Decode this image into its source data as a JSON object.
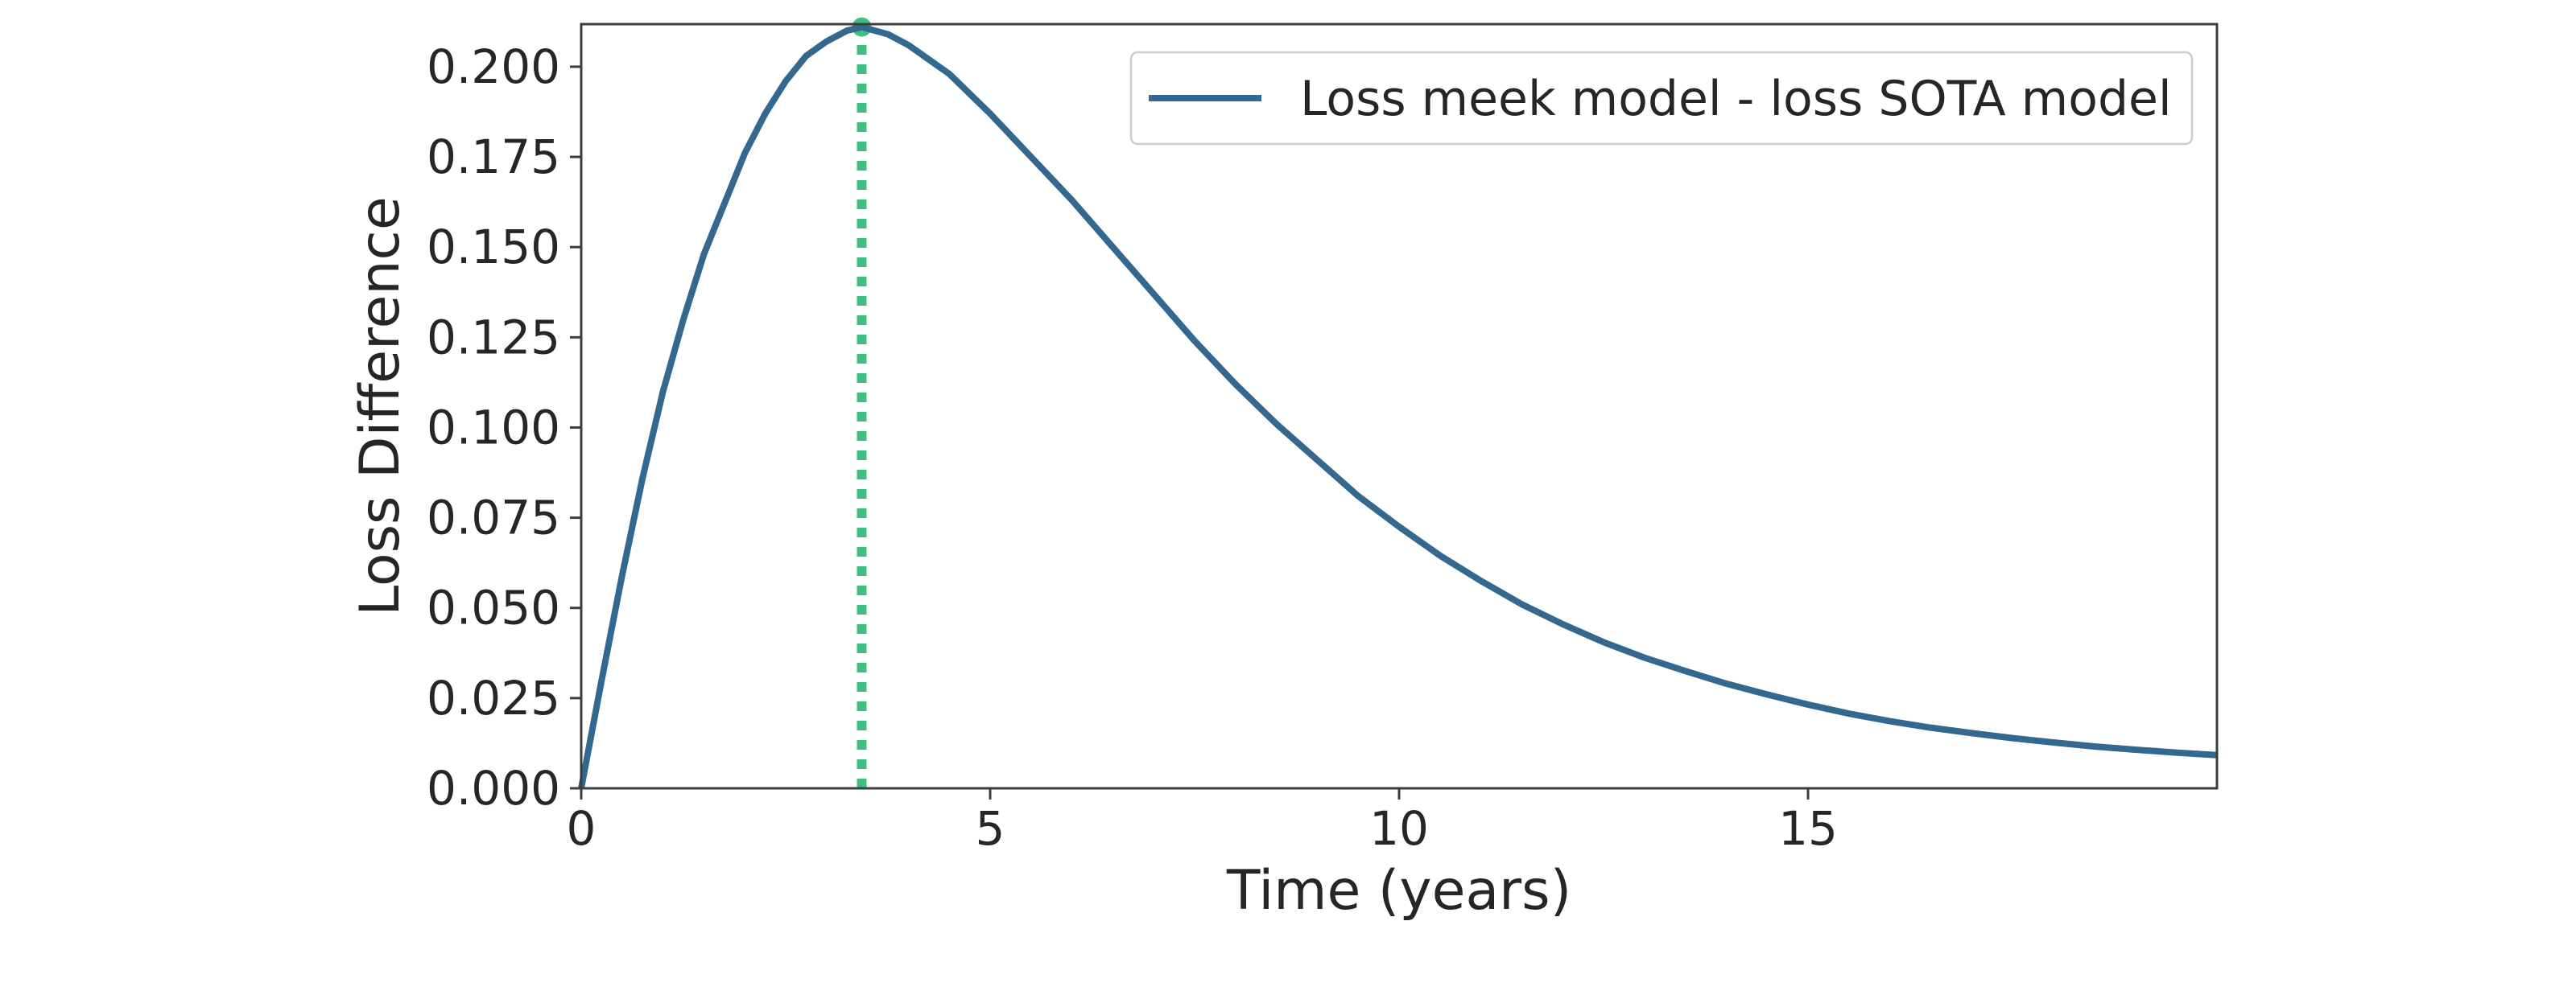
{
  "chart_data": {
    "type": "line",
    "title": "",
    "xlabel": "Time (years)",
    "ylabel": "Loss Difference",
    "xlim": [
      0,
      20
    ],
    "ylim": [
      0,
      0.2118
    ],
    "xticks": [
      0,
      5,
      10,
      15
    ],
    "xtick_labels": [
      "0",
      "5",
      "10",
      "15"
    ],
    "yticks": [
      0.0,
      0.025,
      0.05,
      0.075,
      0.1,
      0.125,
      0.15,
      0.175,
      0.2
    ],
    "ytick_labels": [
      "0.000",
      "0.025",
      "0.050",
      "0.075",
      "0.100",
      "0.125",
      "0.150",
      "0.175",
      "0.200"
    ],
    "grid": false,
    "legend_position": "top-right",
    "series": [
      {
        "name": "Loss meek model - loss SOTA model",
        "color": "#34688f",
        "x": [
          0,
          0.25,
          0.5,
          0.75,
          1,
          1.25,
          1.5,
          1.75,
          2,
          2.25,
          2.5,
          2.75,
          3,
          3.25,
          3.43,
          3.75,
          4,
          4.5,
          5,
          5.5,
          6,
          6.5,
          7,
          7.5,
          8,
          8.5,
          9,
          9.5,
          10,
          10.5,
          11,
          11.5,
          12,
          12.5,
          13,
          13.5,
          14,
          14.5,
          15,
          15.5,
          16,
          16.5,
          17,
          17.5,
          18,
          18.5,
          19,
          19.5,
          20
        ],
        "y": [
          0.0,
          0.03,
          0.059,
          0.086,
          0.11,
          0.13,
          0.148,
          0.162,
          0.176,
          0.187,
          0.196,
          0.203,
          0.207,
          0.21,
          0.211,
          0.209,
          0.206,
          0.198,
          0.187,
          0.175,
          0.163,
          0.15,
          0.137,
          0.124,
          0.112,
          0.101,
          0.091,
          0.081,
          0.0725,
          0.0645,
          0.0575,
          0.051,
          0.0455,
          0.0405,
          0.0362,
          0.0325,
          0.029,
          0.026,
          0.0232,
          0.0207,
          0.0186,
          0.0168,
          0.0153,
          0.0139,
          0.0127,
          0.0116,
          0.0107,
          0.0099,
          0.0092
        ]
      }
    ],
    "annotations": [
      {
        "type": "vline",
        "style": "dotted",
        "x": 3.43,
        "color": "#3fbf7f",
        "marker_y": 0.211
      }
    ]
  }
}
